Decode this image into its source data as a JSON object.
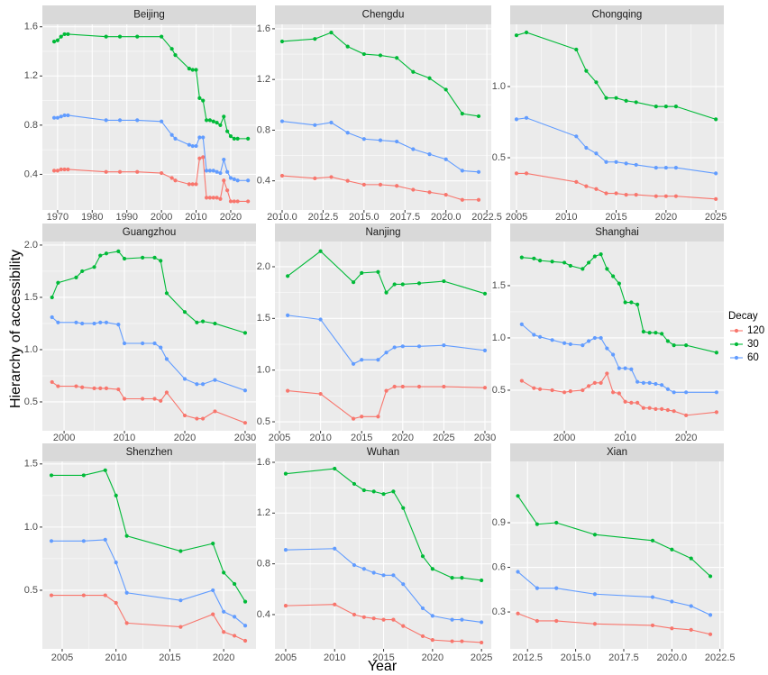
{
  "y_label": "Hierarchy of accessibility",
  "x_label": "Year",
  "legend_title": "Decay",
  "chart_data": [
    {
      "type": "line",
      "title": "Beijing",
      "x": [
        1969,
        1970,
        1971,
        1972,
        1973,
        1984,
        1988,
        1993,
        2000,
        2003,
        2004,
        2008,
        2009,
        2010,
        2011,
        2012,
        2013,
        2014,
        2015,
        2016,
        2017,
        2018,
        2019,
        2020,
        2021,
        2022,
        2025
      ],
      "series": [
        {
          "name": "120",
          "color": "#F8766D",
          "values": [
            0.43,
            0.43,
            0.44,
            0.44,
            0.44,
            0.42,
            0.42,
            0.42,
            0.41,
            0.37,
            0.35,
            0.32,
            0.32,
            0.32,
            0.53,
            0.54,
            0.21,
            0.21,
            0.21,
            0.21,
            0.2,
            0.35,
            0.27,
            0.18,
            0.18,
            0.18,
            0.18
          ]
        },
        {
          "name": "30",
          "color": "#00BA38",
          "values": [
            1.48,
            1.49,
            1.52,
            1.54,
            1.54,
            1.52,
            1.52,
            1.52,
            1.52,
            1.42,
            1.37,
            1.26,
            1.25,
            1.25,
            1.02,
            1.0,
            0.84,
            0.84,
            0.83,
            0.82,
            0.8,
            0.87,
            0.75,
            0.71,
            0.69,
            0.69,
            0.69
          ]
        },
        {
          "name": "60",
          "color": "#619CFF",
          "values": [
            0.86,
            0.86,
            0.87,
            0.88,
            0.88,
            0.84,
            0.84,
            0.84,
            0.83,
            0.72,
            0.69,
            0.64,
            0.63,
            0.63,
            0.7,
            0.7,
            0.43,
            0.43,
            0.43,
            0.42,
            0.41,
            0.52,
            0.42,
            0.37,
            0.36,
            0.35,
            0.35
          ]
        }
      ],
      "xlim": [
        1965.6,
        2027.3
      ],
      "xticks": [
        1970,
        1980,
        1990,
        2000,
        2010,
        2020
      ],
      "ylim": [
        0.11,
        1.62
      ],
      "yticks": [
        0.4,
        0.8,
        1.2,
        1.6
      ]
    },
    {
      "type": "line",
      "title": "Chengdu",
      "x": [
        2010,
        2012,
        2013,
        2014,
        2015,
        2016,
        2017,
        2018,
        2019,
        2020,
        2021,
        2022
      ],
      "series": [
        {
          "name": "120",
          "color": "#F8766D",
          "values": [
            0.44,
            0.42,
            0.43,
            0.4,
            0.37,
            0.37,
            0.36,
            0.33,
            0.31,
            0.29,
            0.25,
            0.25
          ]
        },
        {
          "name": "30",
          "color": "#00BA38",
          "values": [
            1.5,
            1.52,
            1.57,
            1.46,
            1.4,
            1.39,
            1.37,
            1.26,
            1.21,
            1.12,
            0.93,
            0.91
          ]
        },
        {
          "name": "60",
          "color": "#619CFF",
          "values": [
            0.87,
            0.84,
            0.86,
            0.78,
            0.73,
            0.72,
            0.71,
            0.65,
            0.61,
            0.57,
            0.48,
            0.47
          ]
        }
      ],
      "xlim": [
        2009.56,
        2022.77
      ],
      "xticks": [
        {
          "value": 2010,
          "label": "2010.0"
        },
        2012.5,
        {
          "value": 2015,
          "label": "2015.0"
        },
        2017.5,
        {
          "value": 2020,
          "label": "2020.0"
        },
        2022.5
      ],
      "ylim": [
        0.17,
        1.635
      ],
      "yticks": [
        0.4,
        0.8,
        1.2,
        1.6
      ]
    },
    {
      "type": "line",
      "title": "Chongqing",
      "x": [
        2005,
        2006,
        2011,
        2012,
        2013,
        2014,
        2015,
        2016,
        2017,
        2019,
        2020,
        2021,
        2025
      ],
      "series": [
        {
          "name": "120",
          "color": "#F8766D",
          "values": [
            0.39,
            0.39,
            0.33,
            0.3,
            0.28,
            0.25,
            0.25,
            0.24,
            0.24,
            0.23,
            0.23,
            0.23,
            0.21
          ]
        },
        {
          "name": "30",
          "color": "#00BA38",
          "values": [
            1.36,
            1.38,
            1.26,
            1.11,
            1.03,
            0.92,
            0.92,
            0.9,
            0.89,
            0.86,
            0.86,
            0.86,
            0.77
          ]
        },
        {
          "name": "60",
          "color": "#619CFF",
          "values": [
            0.77,
            0.78,
            0.65,
            0.57,
            0.53,
            0.47,
            0.47,
            0.46,
            0.45,
            0.43,
            0.43,
            0.43,
            0.39
          ]
        }
      ],
      "xlim": [
        2004.37,
        2025.8
      ],
      "xticks": [
        2005,
        2010,
        2015,
        2020,
        2025
      ],
      "ylim": [
        0.133,
        1.437
      ],
      "yticks": [
        0.5,
        {
          "value": 1,
          "label": "1.0"
        }
      ]
    },
    {
      "type": "line",
      "title": "Guangzhou",
      "x": [
        1998,
        1999,
        2002,
        2003,
        2005,
        2006,
        2007,
        2009,
        2010,
        2013,
        2015,
        2016,
        2017,
        2020,
        2022,
        2023,
        2025,
        2030
      ],
      "series": [
        {
          "name": "120",
          "color": "#F8766D",
          "values": [
            0.69,
            0.65,
            0.65,
            0.64,
            0.63,
            0.63,
            0.63,
            0.62,
            0.53,
            0.53,
            0.53,
            0.51,
            0.59,
            0.37,
            0.34,
            0.34,
            0.41,
            0.3
          ]
        },
        {
          "name": "30",
          "color": "#00BA38",
          "values": [
            1.5,
            1.64,
            1.69,
            1.75,
            1.79,
            1.9,
            1.92,
            1.94,
            1.87,
            1.88,
            1.88,
            1.85,
            1.54,
            1.36,
            1.26,
            1.27,
            1.25,
            1.16
          ]
        },
        {
          "name": "60",
          "color": "#619CFF",
          "values": [
            1.31,
            1.26,
            1.26,
            1.25,
            1.25,
            1.26,
            1.26,
            1.24,
            1.06,
            1.06,
            1.06,
            1.02,
            0.91,
            0.72,
            0.67,
            0.67,
            0.71,
            0.61
          ]
        }
      ],
      "xlim": [
        1996.4,
        2031.8
      ],
      "xticks": [
        2000,
        2010,
        2020,
        2030
      ],
      "ylim": [
        0.224,
        2.034
      ],
      "yticks": [
        0.5,
        {
          "value": 1,
          "label": "1.0"
        },
        1.5,
        {
          "value": 2,
          "label": "2.0"
        }
      ]
    },
    {
      "type": "line",
      "title": "Nanjing",
      "x": [
        2006,
        2010,
        2014,
        2015,
        2017,
        2018,
        2019,
        2020,
        2022,
        2025,
        2030
      ],
      "series": [
        {
          "name": "120",
          "color": "#F8766D",
          "values": [
            0.8,
            0.77,
            0.53,
            0.55,
            0.55,
            0.8,
            0.84,
            0.84,
            0.84,
            0.84,
            0.83
          ]
        },
        {
          "name": "30",
          "color": "#00BA38",
          "values": [
            1.91,
            2.15,
            1.85,
            1.94,
            1.95,
            1.75,
            1.83,
            1.83,
            1.84,
            1.86,
            1.74
          ]
        },
        {
          "name": "60",
          "color": "#619CFF",
          "values": [
            1.53,
            1.49,
            1.06,
            1.1,
            1.1,
            1.17,
            1.22,
            1.23,
            1.23,
            1.24,
            1.19
          ]
        }
      ],
      "xlim": [
        2004.45,
        2030.77
      ],
      "xticks": [
        2005,
        2010,
        2015,
        2020,
        2025,
        2030
      ],
      "ylim": [
        0.413,
        2.244
      ],
      "yticks": [
        0.5,
        {
          "value": 1,
          "label": "1.0"
        },
        1.5,
        {
          "value": 2,
          "label": "2.0"
        }
      ]
    },
    {
      "type": "line",
      "title": "Shanghai",
      "x": [
        1993,
        1995,
        1996,
        1998,
        2000,
        2001,
        2003,
        2004,
        2005,
        2006,
        2007,
        2008,
        2009,
        2010,
        2011,
        2012,
        2013,
        2014,
        2015,
        2016,
        2017,
        2018,
        2020,
        2025
      ],
      "series": [
        {
          "name": "120",
          "color": "#F8766D",
          "values": [
            0.59,
            0.52,
            0.51,
            0.5,
            0.48,
            0.49,
            0.5,
            0.54,
            0.57,
            0.57,
            0.66,
            0.48,
            0.47,
            0.39,
            0.38,
            0.38,
            0.33,
            0.33,
            0.32,
            0.32,
            0.31,
            0.3,
            0.26,
            0.29
          ]
        },
        {
          "name": "30",
          "color": "#00BA38",
          "values": [
            1.77,
            1.76,
            1.74,
            1.73,
            1.72,
            1.69,
            1.66,
            1.72,
            1.78,
            1.8,
            1.66,
            1.59,
            1.52,
            1.34,
            1.34,
            1.32,
            1.06,
            1.05,
            1.05,
            1.04,
            0.97,
            0.93,
            0.93,
            0.86
          ]
        },
        {
          "name": "60",
          "color": "#619CFF",
          "values": [
            1.13,
            1.03,
            1.01,
            0.98,
            0.95,
            0.94,
            0.93,
            0.97,
            1.0,
            1.0,
            0.9,
            0.84,
            0.71,
            0.71,
            0.7,
            0.58,
            0.57,
            0.57,
            0.56,
            0.55,
            0.51,
            0.48,
            0.48,
            0.48
          ]
        }
      ],
      "xlim": [
        1991.1,
        2026.2
      ],
      "xticks": [
        2000,
        2010,
        2020
      ],
      "ylim": [
        0.112,
        1.922
      ],
      "yticks": [
        0.5,
        {
          "value": 1,
          "label": "1.0"
        },
        1.5
      ]
    },
    {
      "type": "line",
      "title": "Shenzhen",
      "x": [
        2004,
        2007,
        2009,
        2010,
        2011,
        2016,
        2019,
        2020,
        2021,
        2022
      ],
      "series": [
        {
          "name": "120",
          "color": "#F8766D",
          "values": [
            0.46,
            0.46,
            0.46,
            0.4,
            0.24,
            0.21,
            0.31,
            0.17,
            0.14,
            0.1
          ]
        },
        {
          "name": "30",
          "color": "#00BA38",
          "values": [
            1.41,
            1.41,
            1.45,
            1.25,
            0.93,
            0.81,
            0.87,
            0.64,
            0.55,
            0.41
          ]
        },
        {
          "name": "60",
          "color": "#619CFF",
          "values": [
            0.89,
            0.89,
            0.9,
            0.72,
            0.48,
            0.42,
            0.5,
            0.33,
            0.29,
            0.22
          ]
        }
      ],
      "xlim": [
        2003.16,
        2023.0
      ],
      "xticks": [
        2005,
        2010,
        2015,
        2020
      ],
      "ylim": [
        0.036,
        1.52
      ],
      "yticks": [
        0.5,
        {
          "value": 1,
          "label": "1.0"
        },
        1.5
      ]
    },
    {
      "type": "line",
      "title": "Wuhan",
      "x": [
        2005,
        2010,
        2012,
        2013,
        2014,
        2015,
        2016,
        2017,
        2019,
        2020,
        2022,
        2023,
        2025
      ],
      "series": [
        {
          "name": "120",
          "color": "#F8766D",
          "values": [
            0.47,
            0.48,
            0.4,
            0.38,
            0.37,
            0.36,
            0.36,
            0.31,
            0.23,
            0.2,
            0.19,
            0.19,
            0.18
          ]
        },
        {
          "name": "30",
          "color": "#00BA38",
          "values": [
            1.51,
            1.55,
            1.43,
            1.38,
            1.37,
            1.35,
            1.37,
            1.24,
            0.86,
            0.76,
            0.69,
            0.69,
            0.67
          ]
        },
        {
          "name": "60",
          "color": "#619CFF",
          "values": [
            0.91,
            0.92,
            0.79,
            0.76,
            0.73,
            0.71,
            0.71,
            0.64,
            0.45,
            0.39,
            0.36,
            0.36,
            0.34
          ]
        }
      ],
      "xlim": [
        2003.9,
        2026.0
      ],
      "xticks": [
        2005,
        2010,
        2015,
        2020,
        2025
      ],
      "ylim": [
        0.13,
        1.607
      ],
      "yticks": [
        0.4,
        0.8,
        1.2,
        1.6
      ]
    },
    {
      "type": "line",
      "title": "Xian",
      "x": [
        2012,
        2013,
        2014,
        2016,
        2019,
        2020,
        2021,
        2022
      ],
      "series": [
        {
          "name": "120",
          "color": "#F8766D",
          "values": [
            0.29,
            0.24,
            0.24,
            0.22,
            0.21,
            0.19,
            0.18,
            0.15
          ]
        },
        {
          "name": "30",
          "color": "#00BA38",
          "values": [
            1.08,
            0.89,
            0.9,
            0.82,
            0.78,
            0.72,
            0.66,
            0.54
          ]
        },
        {
          "name": "60",
          "color": "#619CFF",
          "values": [
            0.57,
            0.46,
            0.46,
            0.42,
            0.4,
            0.37,
            0.34,
            0.28
          ]
        }
      ],
      "xlim": [
        2011.6,
        2022.7
      ],
      "xticks": [
        2012.5,
        {
          "value": 2015,
          "label": "2015.0"
        },
        2017.5,
        {
          "value": 2020,
          "label": "2020.0"
        },
        2022.5
      ],
      "ylim": [
        0.052,
        1.312
      ],
      "yticks": [
        0.3,
        0.6,
        0.9
      ]
    }
  ]
}
